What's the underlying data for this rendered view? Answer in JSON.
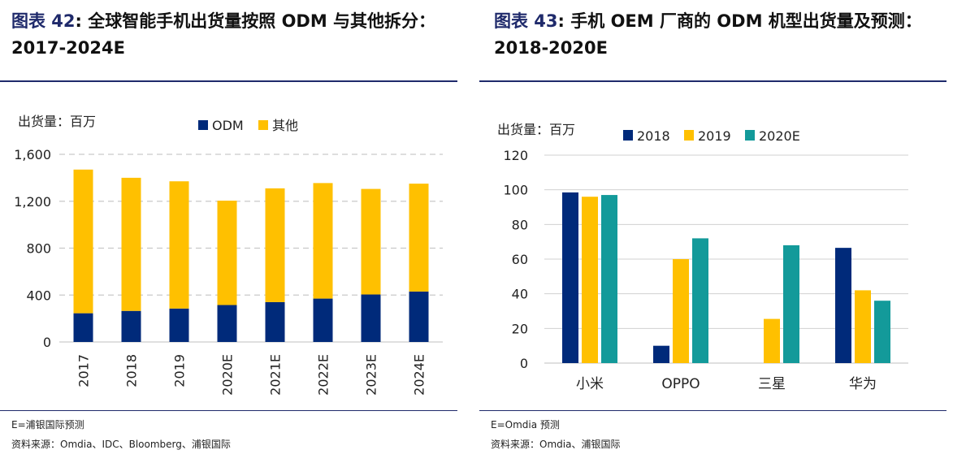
{
  "panels": [
    {
      "title_prefix": "图表 42",
      "title_text": ": 全球智能手机出货量按照 ODM 与其他拆分：2017-2024E",
      "note1": "E=浦银国际预测",
      "note2": "资料来源：Omdia、IDC、Bloomberg、浦银国际"
    },
    {
      "title_prefix": "图表 43",
      "title_text": ": 手机 OEM 厂商的 ODM 机型出货量及预测：2018-2020E",
      "note1": "E=Omdia 预测",
      "note2": "资料来源：Omdia、浦银国际"
    }
  ],
  "chart_data": [
    {
      "type": "bar",
      "stacked": true,
      "unit_label": "出货量：百万",
      "categories": [
        "2017",
        "2018",
        "2019",
        "2020E",
        "2021E",
        "2022E",
        "2023E",
        "2024E"
      ],
      "series": [
        {
          "name": "ODM",
          "color": "#002a7a",
          "values": [
            245,
            265,
            285,
            315,
            340,
            370,
            405,
            430
          ]
        },
        {
          "name": "其他",
          "color": "#ffc000",
          "values": [
            1225,
            1135,
            1085,
            890,
            970,
            985,
            900,
            920
          ]
        }
      ],
      "ylim": [
        0,
        1600
      ],
      "yticks": [
        0,
        400,
        800,
        1200,
        1600
      ],
      "ytick_labels": [
        "0",
        "400",
        "800",
        "1,200",
        "1,600"
      ],
      "grid": true,
      "legend": "top"
    },
    {
      "type": "bar",
      "stacked": false,
      "unit_label": "出货量：百万",
      "categories": [
        "小米",
        "OPPO",
        "三星",
        "华为"
      ],
      "series": [
        {
          "name": "2018",
          "color": "#002a7a",
          "values": [
            98.5,
            10,
            0,
            66.5
          ]
        },
        {
          "name": "2019",
          "color": "#ffc000",
          "values": [
            96,
            60,
            25.5,
            42
          ]
        },
        {
          "name": "2020E",
          "color": "#139a9a",
          "values": [
            97,
            72,
            68,
            36
          ]
        }
      ],
      "ylim": [
        0,
        120
      ],
      "yticks": [
        0,
        20,
        40,
        60,
        80,
        100,
        120
      ],
      "ytick_labels": [
        "0",
        "20",
        "40",
        "60",
        "80",
        "100",
        "120"
      ],
      "grid": true,
      "legend": "top"
    }
  ]
}
